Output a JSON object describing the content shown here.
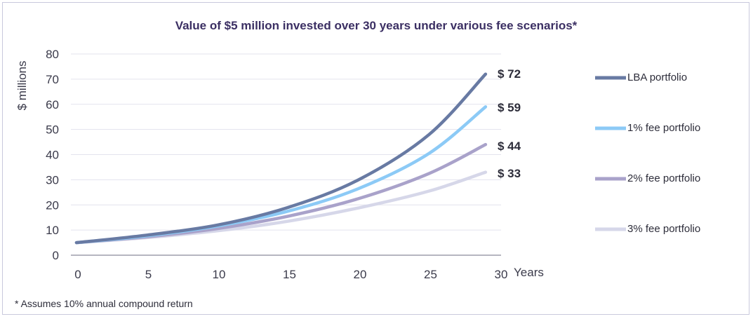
{
  "chart_data": {
    "type": "line",
    "title": "Value of $5 million invested over 30 years under various fee scenarios*",
    "xlabel": "Years",
    "ylabel": "$ millions",
    "xlim": [
      0,
      30
    ],
    "ylim": [
      0,
      80
    ],
    "x_ticks": [
      "0",
      "5",
      "10",
      "15",
      "20",
      "25",
      "30"
    ],
    "y_ticks": [
      "0",
      "10",
      "20",
      "30",
      "40",
      "50",
      "60",
      "70",
      "80"
    ],
    "grid": true,
    "legend_position": "right",
    "footnote": "* Assumes 10% annual compound return",
    "series": [
      {
        "name": "LBA portfolio",
        "color": "#687aa3",
        "end_label": "$ 72",
        "x": [
          0,
          5,
          10,
          15,
          20,
          25,
          29
        ],
        "values": [
          5,
          8,
          12,
          19,
          30,
          48,
          72
        ]
      },
      {
        "name": "1% fee portfolio",
        "color": "#8ccaf6",
        "end_label": "$ 59",
        "x": [
          0,
          5,
          10,
          15,
          20,
          25,
          29
        ],
        "values": [
          5,
          7.7,
          11.6,
          17.5,
          26.5,
          40.5,
          59
        ]
      },
      {
        "name": "2% fee portfolio",
        "color": "#a9a2ca",
        "end_label": "$ 44",
        "x": [
          0,
          5,
          10,
          15,
          20,
          25,
          29
        ],
        "values": [
          5,
          7.3,
          10.6,
          15.5,
          22.5,
          32.5,
          44
        ]
      },
      {
        "name": "3% fee portfolio",
        "color": "#d6d7e9",
        "end_label": "$ 33",
        "x": [
          0,
          5,
          10,
          15,
          20,
          25,
          29
        ],
        "values": [
          5,
          7,
          9.7,
          13.5,
          18.8,
          25.5,
          33
        ]
      }
    ]
  }
}
